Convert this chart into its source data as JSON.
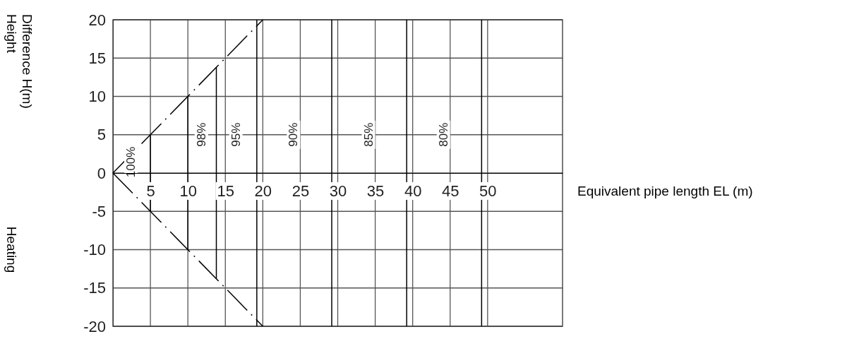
{
  "chart_data": {
    "type": "line",
    "xlabel": "Equivalent pipe length EL (m)",
    "ylabel": "Height\nDifference H(m)",
    "xlim": [
      0,
      60
    ],
    "ylim": [
      -20,
      20
    ],
    "xticks": [
      5,
      10,
      15,
      20,
      25,
      30,
      35,
      40,
      45,
      50
    ],
    "yticks": [
      {
        "value": 20,
        "label": "20"
      },
      {
        "value": 15,
        "label": "15"
      },
      {
        "value": 10,
        "label": "10"
      },
      {
        "value": 5,
        "label": "5"
      },
      {
        "value": 0,
        "label": "0"
      },
      {
        "value": -5,
        "label": "-5"
      },
      {
        "value": -10,
        "label": "-10"
      },
      {
        "value": -15,
        "label": "-15"
      },
      {
        "value": -20,
        "label": "-20"
      }
    ],
    "grid": true,
    "series": [
      {
        "color": "#000000",
        "line_style": "dashed",
        "x": [
          0,
          20
        ],
        "values": [
          0,
          20
        ]
      },
      {
        "color": "#000000",
        "line_style": "dashed",
        "x": [
          0,
          20
        ],
        "values": [
          0,
          -20
        ]
      },
      {
        "color": "#000000",
        "line_style": "solid",
        "x": [
          5,
          5
        ],
        "values": [
          -5,
          5
        ]
      },
      {
        "color": "#000000",
        "line_style": "solid",
        "x": [
          10,
          10
        ],
        "values": [
          -10,
          10
        ]
      },
      {
        "color": "#000000",
        "line_style": "solid",
        "x": [
          13.8,
          13.8
        ],
        "values": [
          -13.8,
          13.8
        ]
      },
      {
        "color": "#000000",
        "line_style": "solid",
        "x": [
          19.2,
          19.2
        ],
        "values": [
          -20,
          20
        ]
      },
      {
        "color": "#000000",
        "line_style": "solid",
        "x": [
          29.2,
          29.2
        ],
        "values": [
          -20,
          20
        ]
      },
      {
        "color": "#000000",
        "line_style": "solid",
        "x": [
          39.2,
          39.2
        ],
        "values": [
          -20,
          20
        ]
      },
      {
        "color": "#000000",
        "line_style": "solid",
        "x": [
          49.2,
          49.2
        ],
        "values": [
          -20,
          20
        ]
      }
    ],
    "annotations": [
      "100%",
      "98%",
      "95%",
      "90%",
      "85%",
      "80%",
      "Heating"
    ]
  }
}
